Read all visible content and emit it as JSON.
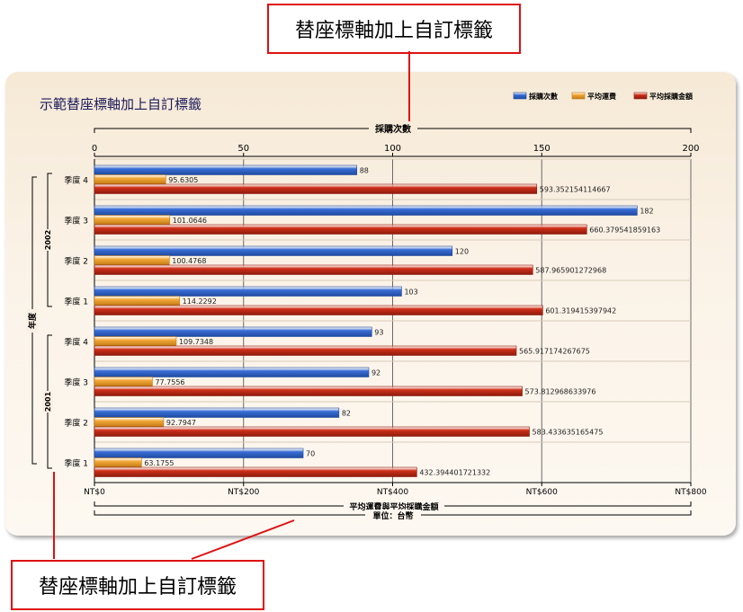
{
  "callouts": {
    "top": "替座標軸加上自訂標籤",
    "bottom": "替座標軸加上自訂標籤"
  },
  "colors": {
    "callout": "#e01010",
    "series": [
      "#3a6fd8",
      "#f5a93a",
      "#d0301a"
    ],
    "title": "#1a1a5a"
  },
  "chart_data": {
    "type": "bar",
    "orientation": "horizontal",
    "title": "示範替座標軸加上自訂標籤",
    "legend": {
      "placement": "top-right",
      "items": [
        "採購次數",
        "平均運費",
        "平均採購金額"
      ]
    },
    "top_axis": {
      "title": "採購次數",
      "ticks": [
        "0",
        "50",
        "100",
        "150",
        "200"
      ],
      "range": [
        0,
        200
      ]
    },
    "bottom_axis": {
      "title": "平均運費與平均採購金額",
      "subtitle": "單位：台幣",
      "ticks": [
        "NT$0",
        "NT$200",
        "NT$400",
        "NT$600",
        "NT$800"
      ],
      "range": [
        0,
        800
      ]
    },
    "y_axis": {
      "title": "年度",
      "groups": [
        "2002",
        "2001"
      ]
    },
    "categories": [
      {
        "year": "2002",
        "label": "季度 4"
      },
      {
        "year": "2002",
        "label": "季度 3"
      },
      {
        "year": "2002",
        "label": "季度 2"
      },
      {
        "year": "2002",
        "label": "季度 1"
      },
      {
        "year": "2001",
        "label": "季度 4"
      },
      {
        "year": "2001",
        "label": "季度 3"
      },
      {
        "year": "2001",
        "label": "季度 2"
      },
      {
        "year": "2001",
        "label": "季度 1"
      }
    ],
    "series": [
      {
        "name": "採購次數",
        "axis": "top",
        "values": [
          88,
          182,
          120,
          103,
          93,
          92,
          82,
          70
        ],
        "labels": [
          "88",
          "182",
          "120",
          "103",
          "93",
          "92",
          "82",
          "70"
        ]
      },
      {
        "name": "平均運費",
        "axis": "bottom",
        "values": [
          95.6305,
          101.0646,
          100.4768,
          114.2292,
          109.7348,
          77.7556,
          92.7947,
          63.1755
        ],
        "labels": [
          "95.6305",
          "101.0646",
          "100.4768",
          "114.2292",
          "109.7348",
          "77.7556",
          "92.7947",
          "63.1755"
        ]
      },
      {
        "name": "平均採購金額",
        "axis": "bottom",
        "values": [
          593.352154114667,
          660.379541859163,
          587.965901272968,
          601.319415397942,
          565.917174267675,
          573.812968633976,
          583.433635165475,
          432.394401721332
        ],
        "labels": [
          "593.352154114667",
          "660.379541859163",
          "587.965901272968",
          "601.319415397942",
          "565.917174267675",
          "573.812968633976",
          "583.433635165475",
          "432.394401721332"
        ]
      }
    ],
    "grid": true
  }
}
